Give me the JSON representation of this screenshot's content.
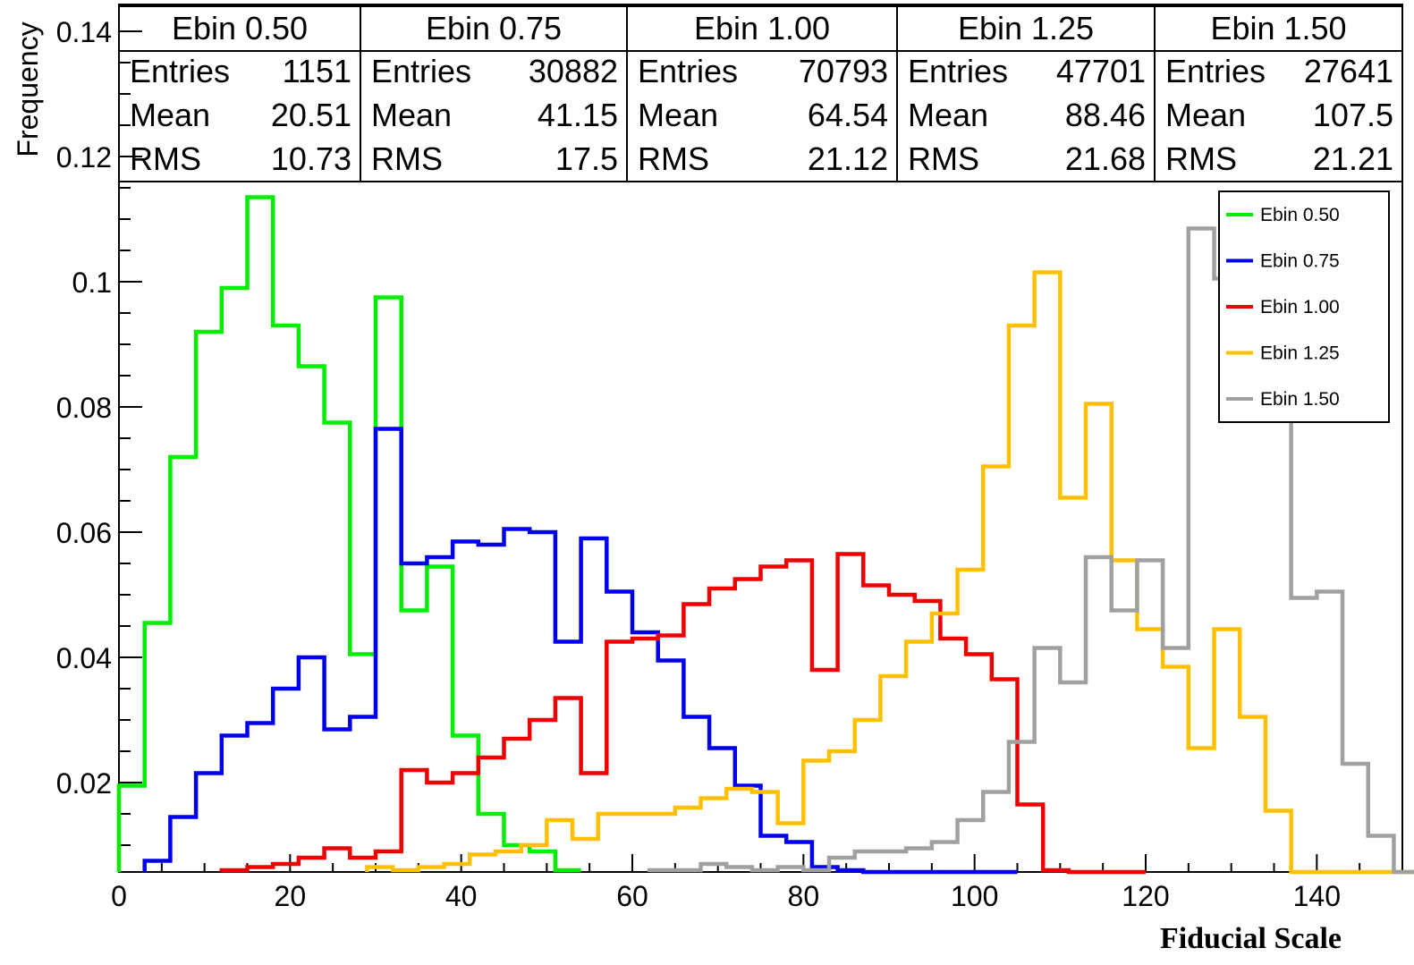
{
  "chart_data": {
    "type": "histogram",
    "xlabel": "Fiducial Scale",
    "ylabel": "Frequency",
    "xlim": [
      0,
      150
    ],
    "ylim": [
      0.005,
      0.14
    ],
    "x_ticks": [
      0,
      20,
      40,
      60,
      80,
      100,
      120,
      140
    ],
    "y_ticks": [
      0.02,
      0.04,
      0.06,
      0.08,
      0.1,
      0.12,
      0.14
    ],
    "y_tick_labels": [
      "0.02",
      "0.04",
      "0.06",
      "0.08",
      "0.1",
      "0.12",
      "0.14"
    ],
    "legend_position": "top-right",
    "bin_width": 3,
    "stats_boxes": [
      {
        "title": "Ebin 0.50",
        "entries_label": "Entries",
        "entries": "1151",
        "mean_label": "Mean",
        "mean": "20.51",
        "rms_label": "RMS",
        "rms": "10.73"
      },
      {
        "title": "Ebin 0.75",
        "entries_label": "Entries",
        "entries": "30882",
        "mean_label": "Mean",
        "mean": "41.15",
        "rms_label": "RMS",
        "rms": "17.5"
      },
      {
        "title": "Ebin 1.00",
        "entries_label": "Entries",
        "entries": "70793",
        "mean_label": "Mean",
        "mean": "64.54",
        "rms_label": "RMS",
        "rms": "21.12"
      },
      {
        "title": "Ebin 1.25",
        "entries_label": "Entries",
        "entries": "47701",
        "mean_label": "Mean",
        "mean": "88.46",
        "rms_label": "RMS",
        "rms": "21.68"
      },
      {
        "title": "Ebin 1.50",
        "entries_label": "Entries",
        "entries": "27641",
        "mean_label": "Mean",
        "mean": "107.5",
        "rms_label": "RMS",
        "rms": "21.21"
      }
    ],
    "series": [
      {
        "name": "Ebin 0.50",
        "color": "#00ee00",
        "start": 0,
        "values": [
          0.0195,
          0.0455,
          0.072,
          0.092,
          0.099,
          0.1135,
          0.093,
          0.0865,
          0.0775,
          0.0405,
          0.0975,
          0.0475,
          0.0545,
          0.0275,
          0.015,
          0.01,
          0.009,
          0.006
        ]
      },
      {
        "name": "Ebin 0.75",
        "color": "#0000ee",
        "start": 3,
        "values": [
          0.0075,
          0.0145,
          0.0215,
          0.0275,
          0.0295,
          0.035,
          0.04,
          0.0285,
          0.0305,
          0.0765,
          0.055,
          0.056,
          0.0585,
          0.058,
          0.0605,
          0.06,
          0.0425,
          0.059,
          0.0505,
          0.044,
          0.0395,
          0.0305,
          0.0255,
          0.0195,
          0.0115,
          0.0105,
          0.0065,
          0.006,
          0.0055,
          0.0055,
          0.0055,
          0.0055,
          0.0055,
          0.0055
        ]
      },
      {
        "name": "Ebin 1.00",
        "color": "#ee0000",
        "start": 12,
        "values": [
          0.006,
          0.0065,
          0.007,
          0.008,
          0.0095,
          0.008,
          0.009,
          0.022,
          0.02,
          0.0215,
          0.024,
          0.027,
          0.03,
          0.0335,
          0.0215,
          0.0425,
          0.043,
          0.0435,
          0.0485,
          0.051,
          0.0525,
          0.0545,
          0.0555,
          0.038,
          0.0565,
          0.0515,
          0.05,
          0.049,
          0.043,
          0.0405,
          0.0365,
          0.0165,
          0.006,
          0.0055,
          0.005,
          0.005
        ]
      },
      {
        "name": "Ebin 1.25",
        "color": "#ffc000",
        "start": 29,
        "values": [
          0.0065,
          0.006,
          0.0065,
          0.007,
          0.0085,
          0.009,
          0.01,
          0.014,
          0.011,
          0.015,
          0.015,
          0.015,
          0.016,
          0.0175,
          0.019,
          0.0185,
          0.0135,
          0.0235,
          0.025,
          0.03,
          0.037,
          0.0425,
          0.047,
          0.054,
          0.0705,
          0.093,
          0.1015,
          0.0655,
          0.0805,
          0.0555,
          0.0445,
          0.0385,
          0.0255,
          0.0445,
          0.0305,
          0.0155,
          0.0055,
          0.0055,
          0.0055,
          0.0055,
          0.0055
        ]
      },
      {
        "name": "Ebin 1.50",
        "color": "#a0a0a0",
        "start": 62,
        "values": [
          0.006,
          0.006,
          0.007,
          0.0065,
          0.006,
          0.0065,
          0.006,
          0.008,
          0.009,
          0.009,
          0.0095,
          0.0105,
          0.014,
          0.0185,
          0.0265,
          0.0415,
          0.036,
          0.056,
          0.0475,
          0.0555,
          0.0415,
          0.1085,
          0.1005,
          0.11,
          0.0935,
          0.0495,
          0.0505,
          0.023,
          0.0115,
          0.0055
        ]
      }
    ]
  }
}
